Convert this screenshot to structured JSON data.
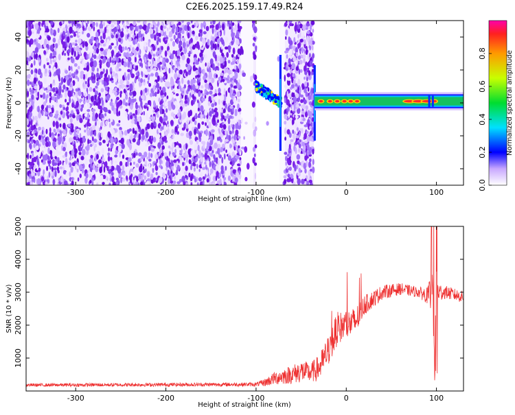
{
  "title": "C2E6.2025.159.17.49.R24",
  "colorbar": {
    "label": "Normalized spectral amplitude",
    "ticks": [
      "0.0",
      "0.2",
      "0.4",
      "0.6",
      "0.8"
    ],
    "tick_values": [
      0.0,
      0.2,
      0.4,
      0.6,
      0.8
    ],
    "range": [
      0,
      1
    ]
  },
  "colors": {
    "snr_line": "#ee3030",
    "spectro_noise": "#7a1fe8",
    "signal_band": "#16c060",
    "signal_peak": "#ff2a2a"
  },
  "chart_data": [
    {
      "type": "heatmap",
      "xlabel": "Height of straight line (km)",
      "ylabel": "Frequency (Hz)",
      "xlim": [
        -355,
        130
      ],
      "ylim": [
        -50,
        50
      ],
      "xticks": [
        -300,
        -200,
        -100,
        0,
        100
      ],
      "xtick_labels": [
        "-300",
        "-200",
        "-100",
        "0",
        "100"
      ],
      "yticks": [
        -40,
        -20,
        0,
        20,
        40
      ],
      "ytick_labels": [
        "-40",
        "-20",
        "0",
        "20",
        "40"
      ],
      "features": {
        "noise_region": [
          -355,
          -100
        ],
        "blank_gap": [
          -100,
          -70
        ],
        "noise_strip": [
          -70,
          -36
        ],
        "blank_strips_in_noise": [
          [
            -117,
            -103
          ],
          [
            -74,
            -68
          ]
        ],
        "transition_blob": {
          "x": [
            -100,
            -72
          ],
          "freq": [
            0,
            10
          ]
        },
        "vertical_spikes_x": [
          -73,
          -35
        ],
        "signal_band": {
          "x": [
            -35,
            130
          ],
          "freq": [
            -2,
            4
          ]
        },
        "signal_peaks_x": [
          -28,
          -18,
          -10,
          -2,
          5,
          12,
          70,
          80,
          90,
          98
        ]
      }
    },
    {
      "type": "line",
      "xlabel": "Height of straight line (km)",
      "ylabel": "SNR (10 * v/v)",
      "xlim": [
        -355,
        130
      ],
      "ylim": [
        0,
        5000
      ],
      "xticks": [
        -300,
        -200,
        -100,
        0,
        100
      ],
      "xtick_labels": [
        "-300",
        "-200",
        "-100",
        "0",
        "100"
      ],
      "yticks": [
        1000,
        2000,
        3000,
        4000,
        5000
      ],
      "ytick_labels": [
        "1000",
        "2000",
        "3000",
        "4000",
        "5000"
      ],
      "envelope": {
        "x": [
          -355,
          -100,
          -90,
          -80,
          -70,
          -60,
          -50,
          -40,
          -30,
          -20,
          -10,
          0,
          10,
          20,
          40,
          60,
          80,
          90,
          96,
          98,
          100,
          102,
          110,
          130
        ],
        "mean": [
          180,
          200,
          260,
          380,
          450,
          500,
          600,
          550,
          700,
          1200,
          1900,
          2000,
          2100,
          2600,
          3000,
          3100,
          3000,
          2900,
          2900,
          400,
          3200,
          3000,
          3000,
          2850
        ],
        "noise": [
          50,
          60,
          120,
          200,
          250,
          280,
          350,
          300,
          400,
          500,
          500,
          450,
          450,
          300,
          220,
          180,
          160,
          250,
          800,
          300,
          900,
          300,
          200,
          180
        ]
      }
    }
  ]
}
